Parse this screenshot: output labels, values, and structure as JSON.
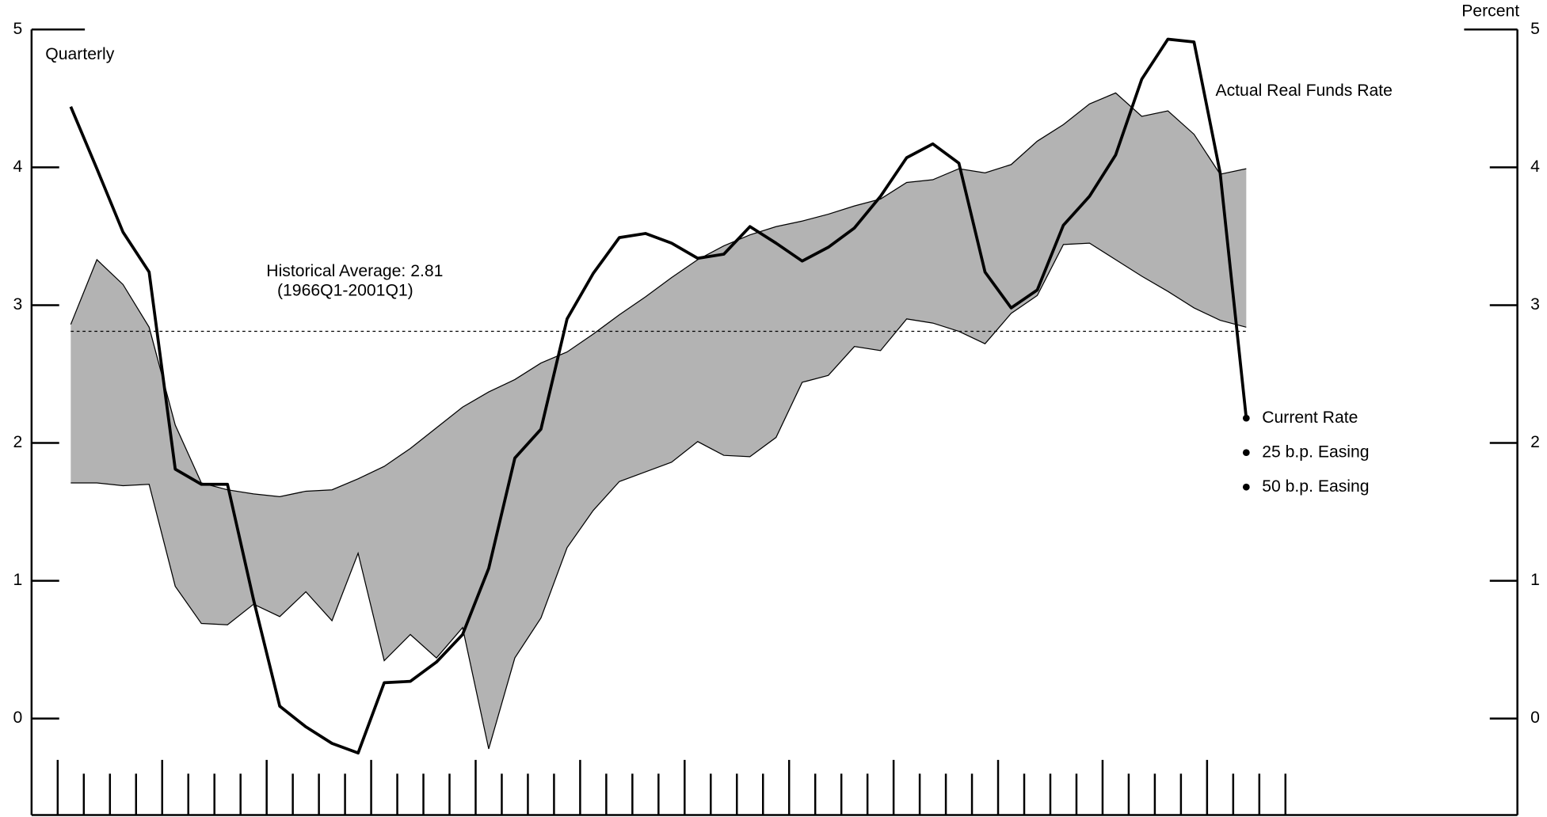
{
  "chart_data": {
    "type": "line",
    "annotations": {
      "quarterly": "Quarterly",
      "average": "Historical Average: 2.81",
      "average_period": "(1966Q1-2001Q1)",
      "right_axis": "Percent"
    },
    "x": [
      1990.125,
      1990.375,
      1990.625,
      1990.875,
      1991.125,
      1991.375,
      1991.625,
      1991.875,
      1992.125,
      1992.375,
      1992.625,
      1992.875,
      1993.125,
      1993.375,
      1993.625,
      1993.875,
      1994.125,
      1994.375,
      1994.625,
      1994.875,
      1995.125,
      1995.375,
      1995.625,
      1995.875,
      1996.125,
      1996.375,
      1996.625,
      1996.875,
      1997.125,
      1997.375,
      1997.625,
      1997.875,
      1998.125,
      1998.375,
      1998.625,
      1998.875,
      1999.125,
      1999.375,
      1999.625,
      1999.875,
      2000.125,
      2000.375,
      2000.625,
      2000.875,
      2001.125,
      2001.375
    ],
    "series": [
      {
        "name": "Actual Real Funds Rate",
        "color": "#000000",
        "values": [
          4.44,
          3.99,
          3.53,
          3.24,
          1.81,
          1.7,
          1.7,
          0.86,
          0.09,
          -0.06,
          -0.18,
          -0.25,
          0.26,
          0.27,
          0.41,
          0.61,
          1.09,
          1.89,
          2.1,
          2.9,
          3.23,
          3.49,
          3.52,
          3.45,
          3.34,
          3.37,
          3.57,
          3.45,
          3.32,
          3.42,
          3.56,
          3.79,
          4.07,
          4.17,
          4.03,
          3.24,
          2.98,
          3.11,
          3.58,
          3.79,
          4.09,
          4.64,
          4.93,
          4.91,
          3.96,
          2.18
        ]
      }
    ],
    "band": {
      "color": "#b3b3b3",
      "upper": [
        2.86,
        3.33,
        3.15,
        2.84,
        2.13,
        1.71,
        1.66,
        1.63,
        1.61,
        1.65,
        1.66,
        1.74,
        1.83,
        1.96,
        2.11,
        2.26,
        2.37,
        2.46,
        2.58,
        2.66,
        2.79,
        2.93,
        3.06,
        3.2,
        3.33,
        3.43,
        3.51,
        3.57,
        3.61,
        3.66,
        3.72,
        3.77,
        3.89,
        3.91,
        3.99,
        3.96,
        4.02,
        4.19,
        4.31,
        4.46,
        4.54,
        4.37,
        4.41,
        4.24,
        3.95,
        3.99
      ],
      "lower": [
        1.71,
        1.71,
        1.69,
        1.7,
        0.96,
        0.69,
        0.68,
        0.83,
        0.74,
        0.92,
        0.71,
        1.2,
        0.42,
        0.61,
        0.44,
        0.66,
        -0.22,
        0.44,
        0.73,
        1.24,
        1.51,
        1.72,
        1.79,
        1.86,
        2.01,
        1.91,
        1.9,
        2.04,
        2.44,
        2.49,
        2.7,
        2.67,
        2.9,
        2.87,
        2.81,
        2.72,
        2.94,
        3.07,
        3.44,
        3.45,
        3.33,
        3.21,
        3.1,
        2.98,
        2.89,
        2.84
      ]
    },
    "reference_line": 2.81,
    "legend": [
      "Current Rate",
      "25 b.p. Easing",
      "50 b.p. Easing"
    ],
    "xlim": [
      1989.75,
      2003.97
    ],
    "xticks": [
      {
        "value": 1990.5,
        "label": "1990"
      },
      {
        "value": 1991.5,
        "label": "1991"
      },
      {
        "value": 1992.5,
        "label": "1992"
      },
      {
        "value": 1993.5,
        "label": "1993"
      },
      {
        "value": 1994.5,
        "label": "1994"
      },
      {
        "value": 1995.5,
        "label": "1995"
      },
      {
        "value": 1996.5,
        "label": "1996"
      },
      {
        "value": 1997.5,
        "label": "1997"
      },
      {
        "value": 1998.5,
        "label": "1998"
      },
      {
        "value": 1999.5,
        "label": "1999"
      },
      {
        "value": 2000.5,
        "label": "2000"
      },
      {
        "value": 2001.5,
        "label": "2001"
      }
    ],
    "xminorticks": [
      1990,
      1990.25,
      1990.5,
      1990.75,
      1991,
      1991.25,
      1991.5,
      1991.75,
      1992,
      1992.25,
      1992.5,
      1992.75,
      1993,
      1993.25,
      1993.5,
      1993.75,
      1994,
      1994.25,
      1994.5,
      1994.75,
      1995,
      1995.25,
      1995.5,
      1995.75,
      1996,
      1996.25,
      1996.5,
      1996.75,
      1997,
      1997.25,
      1997.5,
      1997.75,
      1998,
      1998.25,
      1998.5,
      1998.75,
      1999,
      1999.25,
      1999.5,
      1999.75,
      2000,
      2000.25,
      2000.5,
      2000.75,
      2001,
      2001.25,
      2001.5,
      2001.75
    ],
    "ylim": [
      -0.7,
      5
    ],
    "yticks": [
      0,
      1,
      2,
      3,
      4,
      5
    ],
    "y2lim": [
      -0.7,
      5
    ],
    "y2ticks": [
      0,
      1,
      2,
      3,
      4,
      5
    ]
  }
}
